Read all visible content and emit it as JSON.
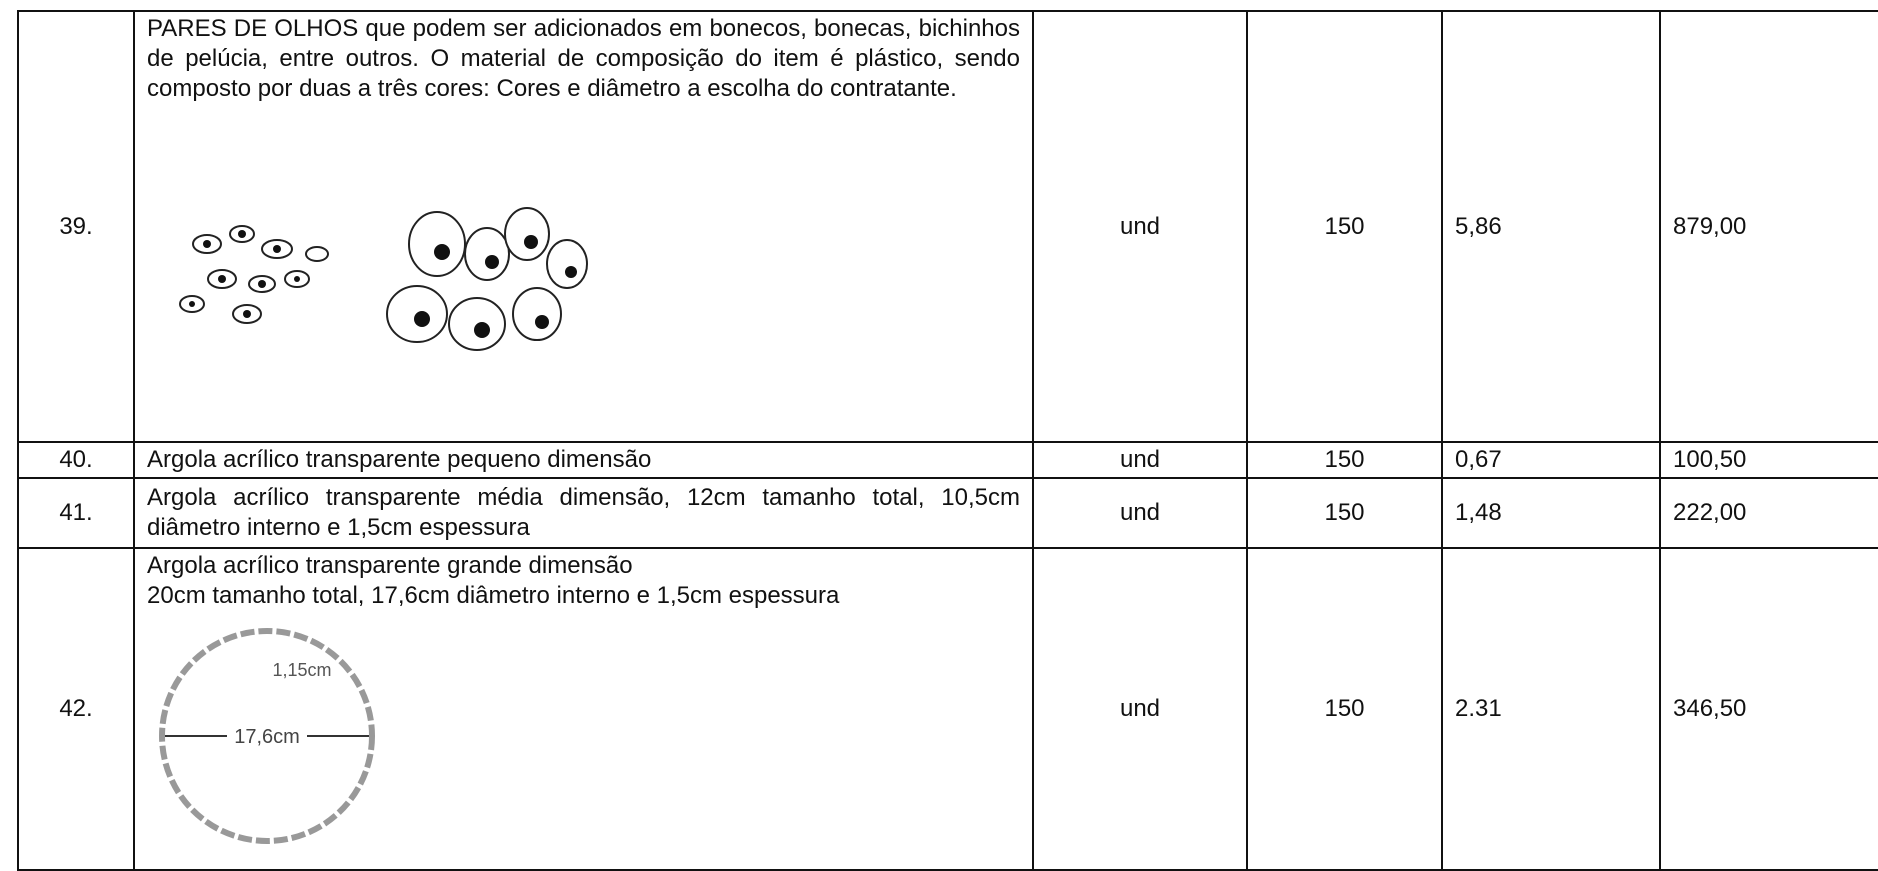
{
  "table": {
    "rows": [
      {
        "number": "39.",
        "description": "PARES DE OLHOS que podem ser adicionados em bonecos, bonecas, bichinhos de pelúcia, entre outros. O material de composição do item é plástico, sendo composto por duas a três cores: Cores e diâmetro a escolha do contratante.",
        "unit": "und",
        "quantity": "150",
        "unit_price": "5,86",
        "total": "879,00"
      },
      {
        "number": "40.",
        "description": "Argola acrílico transparente pequeno dimensão",
        "unit": "und",
        "quantity": "150",
        "unit_price": "0,67",
        "total": "100,50"
      },
      {
        "number": "41.",
        "description": "Argola acrílico transparente média dimensão, 12cm tamanho total, 10,5cm diâmetro interno e 1,5cm espessura",
        "unit": "und",
        "quantity": "150",
        "unit_price": "1,48",
        "total": "222,00"
      },
      {
        "number": "42.",
        "description": [
          "Argola acrílico transparente grande dimensão",
          "20cm tamanho total, 17,6cm diâmetro interno e 1,5cm espessura"
        ],
        "unit": "und",
        "quantity": "150",
        "unit_price": "2.31",
        "total": "346,50",
        "image_labels": [
          "1,15cm",
          "17,6cm"
        ]
      }
    ]
  }
}
